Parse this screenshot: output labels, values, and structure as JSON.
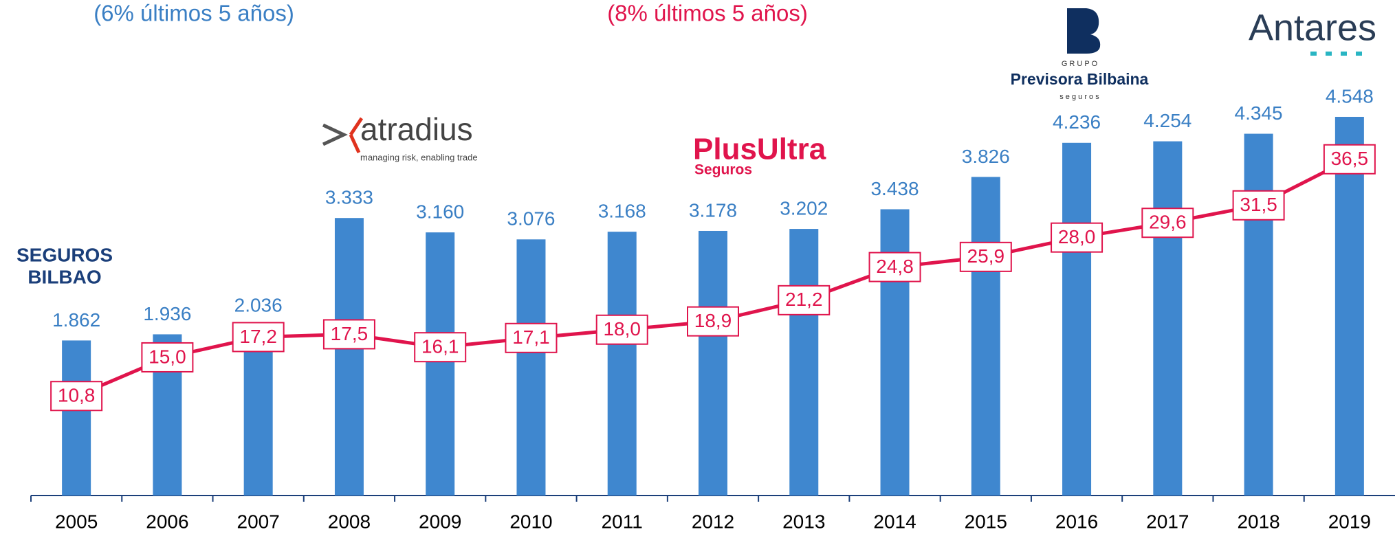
{
  "chart_data": {
    "type": "bar_line",
    "annotations": [
      "(6% últimos 5 años)",
      "(8% últimos 5 años)"
    ],
    "categories": [
      "2005",
      "2006",
      "2007",
      "2008",
      "2009",
      "2010",
      "2011",
      "2012",
      "2013",
      "2014",
      "2015",
      "2016",
      "2017",
      "2018",
      "2019"
    ],
    "series": [
      {
        "type": "bar",
        "color": "#3f87cf",
        "values": [
          1862,
          1936,
          2036,
          3333,
          3160,
          3076,
          3168,
          3178,
          3202,
          3438,
          3826,
          4236,
          4254,
          4345,
          4548
        ],
        "value_labels": [
          "1.862",
          "1.936",
          "2.036",
          "3.333",
          "3.160",
          "3.076",
          "3.168",
          "3.178",
          "3.202",
          "3.438",
          "3.826",
          "4.236",
          "4.254",
          "4.345",
          "4.548"
        ]
      },
      {
        "type": "line",
        "color": "#e0144c",
        "axis": "y2",
        "values": [
          10.8,
          15.0,
          17.2,
          17.5,
          16.1,
          17.1,
          18.0,
          18.9,
          21.2,
          24.8,
          25.9,
          28.0,
          29.6,
          31.5,
          36.5
        ],
        "value_labels": [
          "10,8",
          "15,0",
          "17,2",
          "17,5",
          "16,1",
          "17,1",
          "18,0",
          "18,9",
          "21,2",
          "24,8",
          "25,9",
          "28,0",
          "29,6",
          "31,5",
          "36,5"
        ]
      }
    ],
    "ylim": [
      0,
      5200
    ],
    "y2lim": [
      0,
      47
    ]
  },
  "logos": {
    "seguros_bilbao": [
      "SEGUROS",
      "BILBAO"
    ],
    "atradius": [
      "atradius",
      "managing risk, enabling trade"
    ],
    "plus_ultra": [
      "PlusUltra",
      "Seguros"
    ],
    "previsora": [
      "G R U P O",
      "Previsora Bilbaina",
      "s e g u r o s"
    ],
    "antares": "Antares"
  }
}
